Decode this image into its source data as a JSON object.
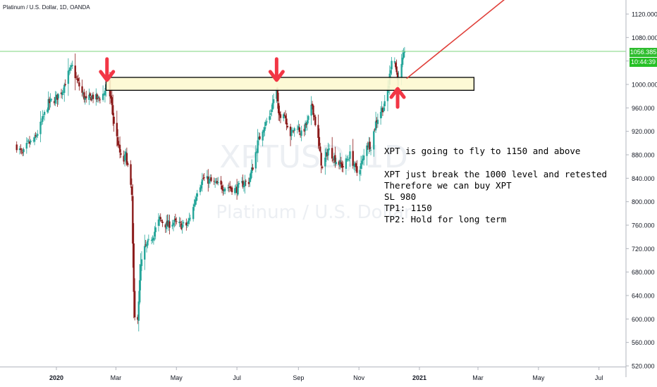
{
  "symbol_title": "Platinum / U.S. Dollar, 1D, OANDA",
  "watermark": {
    "ticker": "XPTUSD, 1D",
    "name": "Platinum / U.S. Dollar"
  },
  "price_tag": {
    "price": "1056.385",
    "countdown": "10:44:39"
  },
  "annotation": {
    "lines": [
      "XPT is going to fly to 1150 and above",
      "XPT just break the 1000 level and retested",
      "Therefore we can buy XPT",
      "SL 980",
      "TP1: 1150",
      "TP2: Hold for long term"
    ]
  },
  "colors": {
    "up": "#26a69a",
    "down": "#8b1a1a",
    "signal": "#f23645",
    "zone_fill": "#fdf8d0",
    "price_line": "#7ed67e",
    "price_tag": "#2ebd2e"
  },
  "chart_data": {
    "type": "candlestick",
    "title": "Platinum / U.S. Dollar, 1D, OANDA",
    "xlabel": "",
    "ylabel": "",
    "ylim": [
      510,
      1160
    ],
    "grid": false,
    "y_ticks": [
      "520.000",
      "560.000",
      "600.000",
      "640.000",
      "680.000",
      "720.000",
      "760.000",
      "800.000",
      "840.000",
      "880.000",
      "920.000",
      "960.000",
      "1000.000",
      "1040.000",
      "1080.000",
      "1120.000"
    ],
    "x_ticks": [
      {
        "label": "2020",
        "date": "2020-01-01"
      },
      {
        "label": "Mar",
        "date": "2020-03-01"
      },
      {
        "label": "May",
        "date": "2020-05-01"
      },
      {
        "label": "Jul",
        "date": "2020-07-01"
      },
      {
        "label": "Sep",
        "date": "2020-09-01"
      },
      {
        "label": "Nov",
        "date": "2020-11-01"
      },
      {
        "label": "2021",
        "date": "2021-01-01"
      },
      {
        "label": "Mar",
        "date": "2021-03-01"
      },
      {
        "label": "May",
        "date": "2021-05-01"
      },
      {
        "label": "Jul",
        "date": "2021-07-01"
      }
    ],
    "close_path": [
      [
        "2019-11-22",
        895
      ],
      [
        "2019-11-28",
        880
      ],
      [
        "2019-12-03",
        898
      ],
      [
        "2019-12-10",
        905
      ],
      [
        "2019-12-17",
        935
      ],
      [
        "2019-12-24",
        968
      ],
      [
        "2019-12-31",
        975
      ],
      [
        "2020-01-07",
        990
      ],
      [
        "2020-01-13",
        1018
      ],
      [
        "2020-01-17",
        1030
      ],
      [
        "2020-01-21",
        1010
      ],
      [
        "2020-01-27",
        985
      ],
      [
        "2020-01-31",
        972
      ],
      [
        "2020-02-06",
        980
      ],
      [
        "2020-02-12",
        975
      ],
      [
        "2020-02-18",
        985
      ],
      [
        "2020-02-21",
        1002
      ],
      [
        "2020-02-25",
        975
      ],
      [
        "2020-02-28",
        935
      ],
      [
        "2020-03-03",
        900
      ],
      [
        "2020-03-06",
        875
      ],
      [
        "2020-03-09",
        870
      ],
      [
        "2020-03-11",
        880
      ],
      [
        "2020-03-13",
        860
      ],
      [
        "2020-03-17",
        810
      ],
      [
        "2020-03-19",
        640
      ],
      [
        "2020-03-20",
        600
      ],
      [
        "2020-03-23",
        605
      ],
      [
        "2020-03-26",
        690
      ],
      [
        "2020-03-30",
        720
      ],
      [
        "2020-04-03",
        730
      ],
      [
        "2020-04-08",
        745
      ],
      [
        "2020-04-14",
        770
      ],
      [
        "2020-04-21",
        760
      ],
      [
        "2020-04-28",
        765
      ],
      [
        "2020-05-05",
        760
      ],
      [
        "2020-05-12",
        760
      ],
      [
        "2020-05-18",
        790
      ],
      [
        "2020-05-22",
        820
      ],
      [
        "2020-05-28",
        840
      ],
      [
        "2020-06-04",
        835
      ],
      [
        "2020-06-10",
        830
      ],
      [
        "2020-06-16",
        825
      ],
      [
        "2020-06-23",
        825
      ],
      [
        "2020-06-30",
        820
      ],
      [
        "2020-07-06",
        830
      ],
      [
        "2020-07-13",
        835
      ],
      [
        "2020-07-17",
        860
      ],
      [
        "2020-07-22",
        900
      ],
      [
        "2020-07-27",
        925
      ],
      [
        "2020-08-03",
        945
      ],
      [
        "2020-08-07",
        975
      ],
      [
        "2020-08-10",
        990
      ],
      [
        "2020-08-12",
        945
      ],
      [
        "2020-08-17",
        955
      ],
      [
        "2020-08-24",
        915
      ],
      [
        "2020-08-31",
        930
      ],
      [
        "2020-09-04",
        915
      ],
      [
        "2020-09-10",
        935
      ],
      [
        "2020-09-15",
        965
      ],
      [
        "2020-09-21",
        905
      ],
      [
        "2020-09-25",
        855
      ],
      [
        "2020-10-01",
        890
      ],
      [
        "2020-10-09",
        870
      ],
      [
        "2020-10-16",
        860
      ],
      [
        "2020-10-23",
        880
      ],
      [
        "2020-10-30",
        850
      ],
      [
        "2020-11-05",
        870
      ],
      [
        "2020-11-09",
        900
      ],
      [
        "2020-11-13",
        895
      ],
      [
        "2020-11-18",
        935
      ],
      [
        "2020-11-23",
        955
      ],
      [
        "2020-11-27",
        965
      ],
      [
        "2020-12-01",
        1000
      ],
      [
        "2020-12-04",
        1045
      ],
      [
        "2020-12-07",
        1040
      ],
      [
        "2020-12-09",
        1020
      ],
      [
        "2020-12-11",
        1008
      ],
      [
        "2020-12-14",
        1030
      ],
      [
        "2020-12-17",
        1056.385
      ]
    ],
    "last_price": 1056.385,
    "drawings": {
      "zone": {
        "from_date": "2020-02-20",
        "to_date": "2021-02-25",
        "low": 990,
        "high": 1012
      },
      "horizontal_line": 1056.385,
      "down_arrows": [
        {
          "date": "2020-02-21",
          "price": 1005
        },
        {
          "date": "2020-08-10",
          "price": 1005
        }
      ],
      "up_arrow": {
        "date": "2020-12-10",
        "price": 995
      },
      "trend_arrow": {
        "from_date": "2020-12-19",
        "from_price": 1010,
        "to_date": "2021-04-21",
        "to_price": 1178
      }
    }
  }
}
